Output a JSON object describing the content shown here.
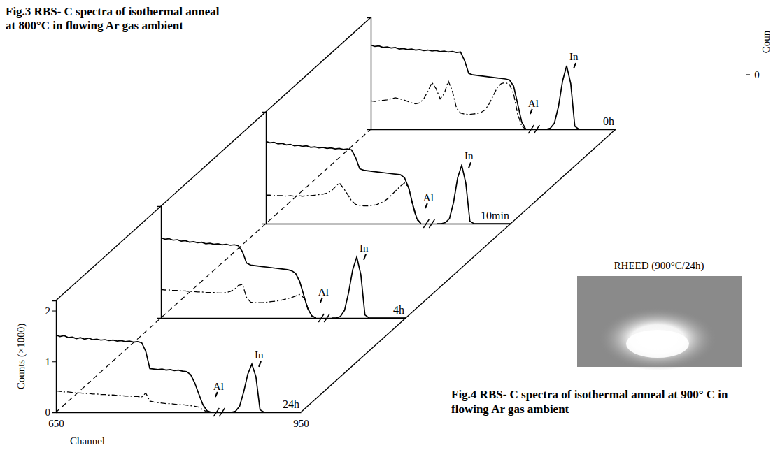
{
  "chart_data": {
    "type": "line",
    "title": "Fig.3 RBS- C spectra of isothermal anneal at 800°C in flowing Ar gas ambient",
    "x_label": "Channel",
    "y_label": "Counts (×1000)",
    "xlim": [
      650,
      950
    ],
    "xticks": [
      650,
      950
    ],
    "ylim": [
      0,
      2.2
    ],
    "yticks": [
      0,
      1,
      2
    ],
    "x": [
      650,
      655,
      660,
      665,
      670,
      675,
      680,
      685,
      690,
      695,
      700,
      705,
      710,
      715,
      720,
      725,
      730,
      735,
      740,
      745,
      750,
      755,
      760,
      765,
      770,
      775,
      780,
      785,
      790,
      795,
      800,
      805,
      810,
      815,
      820,
      825,
      830,
      835,
      840,
      850,
      860,
      865,
      870,
      875,
      880,
      885,
      890,
      895,
      900,
      905,
      910,
      915,
      920,
      925,
      930,
      935,
      940,
      945,
      950
    ],
    "panels": [
      {
        "title": "0h",
        "annotations": [
          "Al",
          "In"
        ],
        "series": [
          {
            "line_style": "solid",
            "color": "#000000",
            "values": [
              1.66,
              1.63,
              1.64,
              1.61,
              1.62,
              1.6,
              1.61,
              1.58,
              1.59,
              1.57,
              1.58,
              1.56,
              1.57,
              1.55,
              1.56,
              1.54,
              1.55,
              1.53,
              1.54,
              1.52,
              1.53,
              1.51,
              1.52,
              1.35,
              1.1,
              1.07,
              1.06,
              1.05,
              1.04,
              1.03,
              1.02,
              1.01,
              1.0,
              0.99,
              0.97,
              0.85,
              0.5,
              0.14,
              0.0,
              null,
              0,
              0,
              0.02,
              0.12,
              0.45,
              0.95,
              1.25,
              0.9,
              0.06,
              0,
              0,
              0,
              0,
              0,
              0,
              0,
              0,
              0,
              0
            ]
          },
          {
            "line_style": "dashdot",
            "color": "#000000",
            "values": [
              0.56,
              0.55,
              0.56,
              0.57,
              0.58,
              0.6,
              0.62,
              0.6,
              0.58,
              0.55,
              0.52,
              0.5,
              0.52,
              0.6,
              0.75,
              0.92,
              0.8,
              0.6,
              0.7,
              0.95,
              0.75,
              0.42,
              0.32,
              0.3,
              0.29,
              0.3,
              0.31,
              0.33,
              0.38,
              0.5,
              0.66,
              0.82,
              0.9,
              0.92,
              0.88,
              0.7,
              0.3,
              0.06,
              0.0,
              null,
              null,
              null,
              null,
              null,
              null,
              null,
              null,
              null,
              null,
              null,
              null,
              null,
              null,
              null,
              null,
              null,
              null,
              null,
              null
            ]
          }
        ]
      },
      {
        "title": "10min",
        "annotations": [
          "Al",
          "In"
        ],
        "series": [
          {
            "line_style": "solid",
            "color": "#000000",
            "values": [
              1.62,
              1.59,
              1.6,
              1.57,
              1.58,
              1.55,
              1.56,
              1.53,
              1.54,
              1.52,
              1.53,
              1.5,
              1.51,
              1.49,
              1.5,
              1.48,
              1.49,
              1.47,
              1.48,
              1.46,
              1.47,
              1.45,
              1.3,
              1.08,
              1.05,
              1.04,
              1.03,
              1.02,
              1.01,
              1.0,
              0.99,
              0.98,
              0.97,
              0.96,
              0.9,
              0.7,
              0.38,
              0.1,
              0.0,
              null,
              0,
              0,
              0.02,
              0.1,
              0.42,
              0.9,
              1.15,
              0.8,
              0.05,
              0,
              0,
              0,
              0,
              0,
              0,
              0,
              0,
              0,
              0
            ]
          },
          {
            "line_style": "dashdot",
            "color": "#000000",
            "values": [
              0.56,
              0.56,
              0.55,
              0.55,
              0.55,
              0.54,
              0.55,
              0.54,
              0.55,
              0.54,
              0.55,
              0.55,
              0.56,
              0.57,
              0.58,
              0.6,
              0.64,
              0.72,
              0.8,
              0.7,
              0.58,
              0.45,
              0.38,
              0.36,
              0.35,
              0.35,
              0.36,
              0.37,
              0.4,
              0.44,
              0.5,
              0.58,
              0.66,
              0.74,
              0.8,
              0.72,
              0.35,
              0.08,
              0.0,
              null,
              null,
              null,
              null,
              null,
              null,
              null,
              null,
              null,
              null,
              null,
              null,
              null,
              null,
              null,
              null,
              null,
              null,
              null,
              null
            ]
          }
        ]
      },
      {
        "title": "4h",
        "annotations": [
          "Al",
          "In"
        ],
        "series": [
          {
            "line_style": "solid",
            "color": "#000000",
            "values": [
              1.58,
              1.55,
              1.56,
              1.53,
              1.54,
              1.51,
              1.52,
              1.49,
              1.5,
              1.48,
              1.49,
              1.46,
              1.47,
              1.45,
              1.46,
              1.44,
              1.45,
              1.43,
              1.44,
              1.42,
              1.3,
              1.08,
              1.04,
              1.03,
              1.02,
              1.01,
              1.0,
              0.99,
              0.98,
              0.97,
              0.96,
              0.95,
              0.93,
              0.88,
              0.72,
              0.45,
              0.18,
              0.04,
              0.0,
              null,
              0,
              0,
              0.03,
              0.15,
              0.5,
              0.95,
              1.2,
              0.85,
              0.06,
              0,
              0,
              0,
              0,
              0,
              0,
              0,
              0,
              0,
              0
            ]
          },
          {
            "line_style": "dashdot",
            "color": "#000000",
            "values": [
              0.56,
              0.55,
              0.55,
              0.54,
              0.54,
              0.53,
              0.53,
              0.52,
              0.52,
              0.51,
              0.51,
              0.5,
              0.5,
              0.5,
              0.49,
              0.49,
              0.5,
              0.52,
              0.56,
              0.64,
              0.66,
              0.4,
              0.31,
              0.3,
              0.3,
              0.3,
              0.31,
              0.32,
              0.33,
              0.34,
              0.36,
              0.38,
              0.4,
              0.43,
              0.46,
              0.4,
              0.2,
              0.04,
              0.0,
              null,
              null,
              null,
              null,
              null,
              null,
              null,
              null,
              null,
              null,
              null,
              null,
              null,
              null,
              null,
              null,
              null,
              null,
              null,
              null
            ]
          }
        ]
      },
      {
        "title": "24h",
        "annotations": [
          "Al",
          "In"
        ],
        "series": [
          {
            "line_style": "solid",
            "color": "#000000",
            "values": [
              1.52,
              1.49,
              1.51,
              1.47,
              1.48,
              1.45,
              1.47,
              1.44,
              1.46,
              1.43,
              1.44,
              1.42,
              1.43,
              1.41,
              1.42,
              1.4,
              1.41,
              1.39,
              1.4,
              1.38,
              1.39,
              1.37,
              1.2,
              0.86,
              0.85,
              0.84,
              0.85,
              0.83,
              0.84,
              0.82,
              0.83,
              0.81,
              0.8,
              0.74,
              0.58,
              0.36,
              0.15,
              0.03,
              0.0,
              null,
              0,
              0,
              0.02,
              0.12,
              0.4,
              0.75,
              0.95,
              0.7,
              0.05,
              0,
              0,
              0,
              0,
              0,
              0,
              0,
              0,
              0,
              0
            ]
          },
          {
            "line_style": "dashdot",
            "color": "#000000",
            "values": [
              0.42,
              0.41,
              0.4,
              0.4,
              0.39,
              0.38,
              0.38,
              0.37,
              0.37,
              0.36,
              0.36,
              0.35,
              0.35,
              0.34,
              0.34,
              0.33,
              0.33,
              0.32,
              0.32,
              0.31,
              0.31,
              0.3,
              0.38,
              0.22,
              0.2,
              0.19,
              0.18,
              0.17,
              0.17,
              0.16,
              0.15,
              0.15,
              0.14,
              0.13,
              0.12,
              0.1,
              0.05,
              0.01,
              0.0,
              null,
              null,
              null,
              null,
              null,
              null,
              null,
              null,
              null,
              null,
              null,
              null,
              null,
              null,
              null,
              null,
              null,
              null,
              null,
              null
            ]
          }
        ]
      }
    ]
  },
  "figure4": {
    "caption": "Fig.4 RBS- C spectra of isothermal anneal at 900° C in flowing Ar gas ambient",
    "image_title": "RHEED (900°C/24h)"
  },
  "fragment": {
    "axis_title": "Coun",
    "ticks": [
      0
    ]
  }
}
